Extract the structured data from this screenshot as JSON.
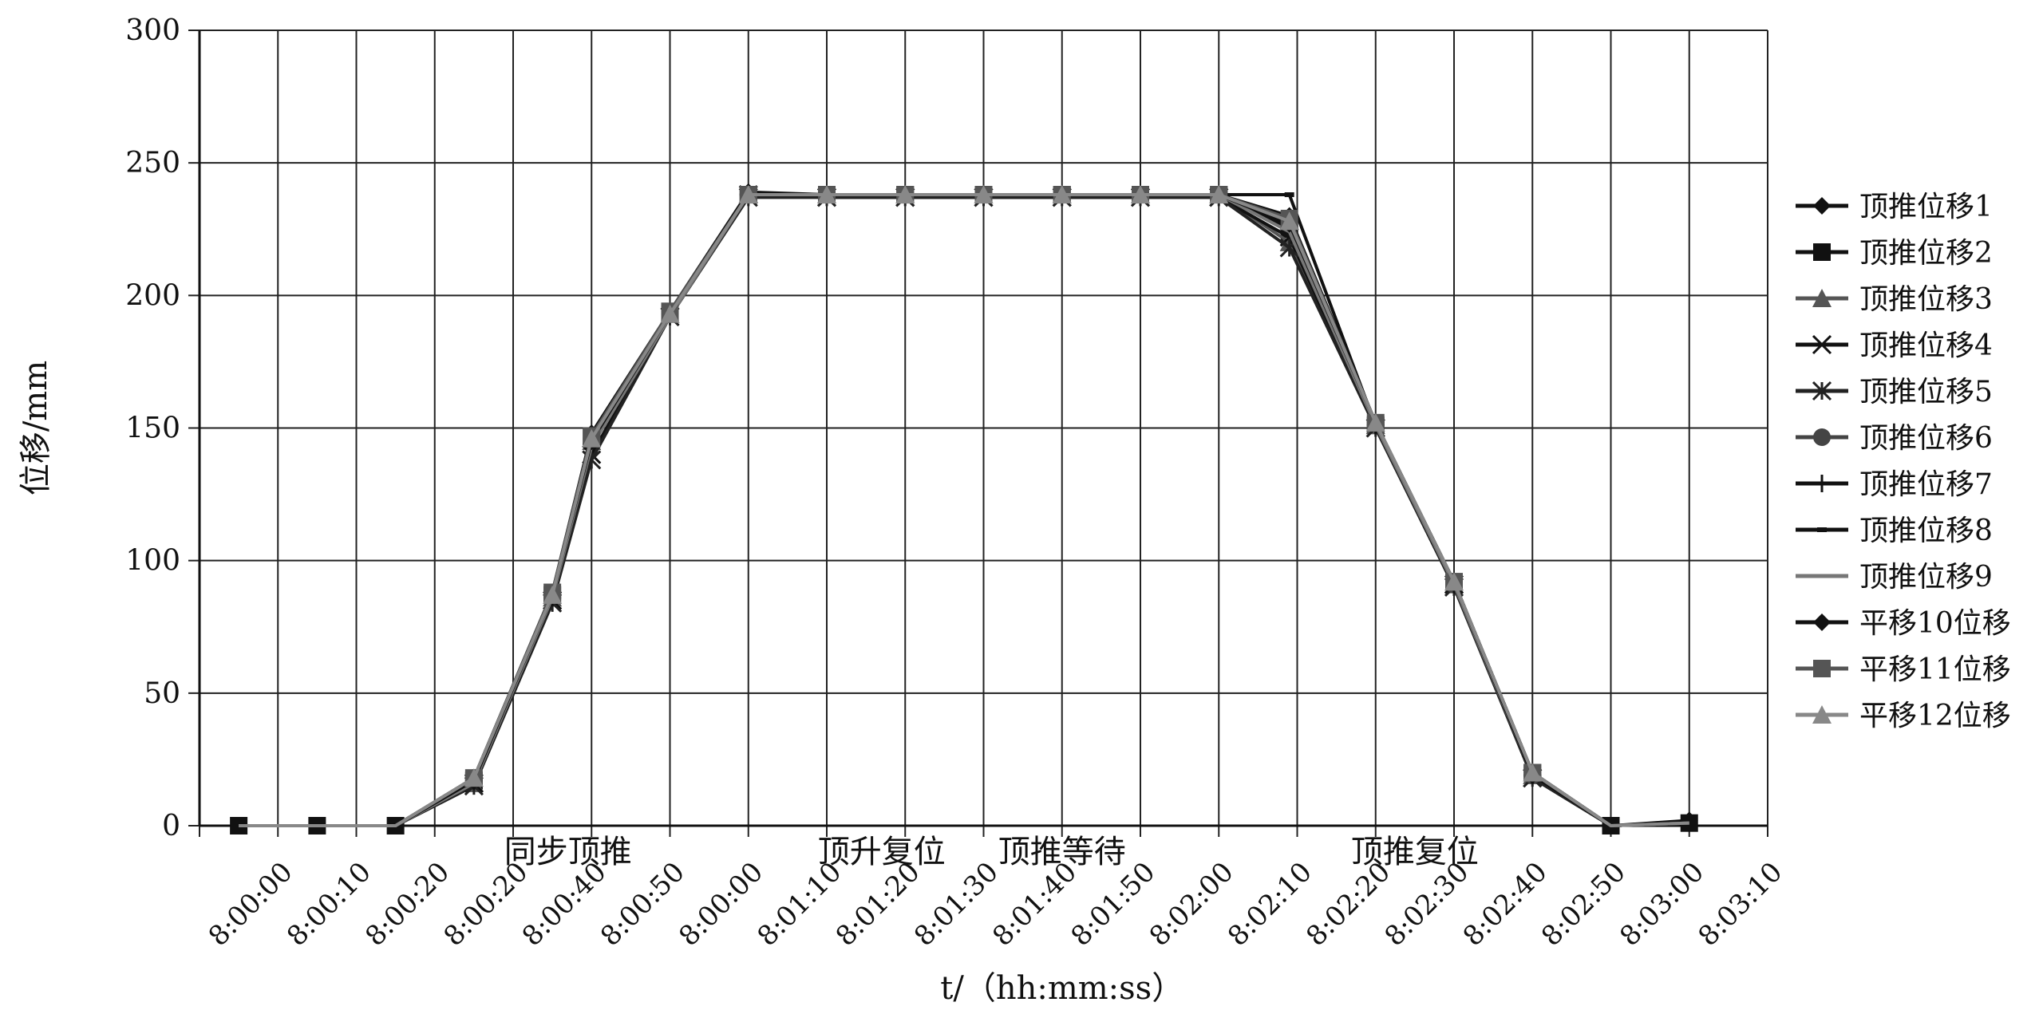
{
  "chart_data": {
    "type": "line",
    "title": "",
    "xlabel": "t/（hh:mm:ss）",
    "ylabel": "位移/mm",
    "ylim": [
      0,
      300
    ],
    "yticks": [
      0,
      50,
      100,
      150,
      200,
      250,
      300
    ],
    "grid": true,
    "legend_position": "right",
    "categories": [
      "8:00:00",
      "8:00:10",
      "8:00:20",
      "8:00:20",
      "8:00:40",
      "8:00:50",
      "8:00:00",
      "8:01:10",
      "8:01:20",
      "8:01:30",
      "8:01:40",
      "8:01:50",
      "8:02:00",
      "8:02:10",
      "8:02:20",
      "8:02:30",
      "8:02:40",
      "8:02:50",
      "8:03:00",
      "8:03:10"
    ],
    "x_positions": [
      0.5,
      1.5,
      2.5,
      3.5,
      4.5,
      5,
      6,
      7,
      8,
      9,
      10,
      11,
      12,
      13,
      13.9,
      15,
      16,
      17,
      18,
      19
    ],
    "annotations": [
      {
        "text": "同步顶推",
        "x": 4.7
      },
      {
        "text": "顶升复位",
        "x": 8.7
      },
      {
        "text": "顶推等待",
        "x": 11
      },
      {
        "text": "顶推复位",
        "x": 15.5
      }
    ],
    "series": [
      {
        "name": "顶推位移1",
        "marker": "diamond",
        "color": "#111111",
        "values": [
          0,
          0,
          0,
          18,
          88,
          148,
          194,
          239,
          238,
          238,
          238,
          238,
          238,
          238,
          230,
          152,
          92,
          20,
          0,
          2
        ]
      },
      {
        "name": "顶推位移2",
        "marker": "square",
        "color": "#111111",
        "values": [
          0,
          0,
          0,
          17,
          87,
          147,
          193,
          238,
          238,
          238,
          238,
          238,
          238,
          238,
          225,
          151,
          92,
          20,
          0,
          1
        ]
      },
      {
        "name": "顶推位移3",
        "marker": "triangle",
        "color": "#555555",
        "values": [
          0,
          0,
          0,
          16,
          86,
          145,
          193,
          238,
          238,
          238,
          238,
          238,
          238,
          238,
          220,
          151,
          91,
          19,
          0,
          1
        ]
      },
      {
        "name": "顶推位移4",
        "marker": "x",
        "color": "#111111",
        "values": [
          0,
          0,
          0,
          16,
          85,
          140,
          192,
          238,
          237,
          237,
          237,
          237,
          237,
          237,
          222,
          150,
          91,
          18,
          0,
          1
        ]
      },
      {
        "name": "顶推位移5",
        "marker": "asterisk",
        "color": "#222222",
        "values": [
          0,
          0,
          0,
          15,
          84,
          138,
          192,
          237,
          237,
          237,
          237,
          237,
          237,
          237,
          218,
          150,
          90,
          18,
          0,
          1
        ]
      },
      {
        "name": "顶推位移6",
        "marker": "circle",
        "color": "#444444",
        "values": [
          0,
          0,
          0,
          18,
          87,
          146,
          193,
          238,
          238,
          238,
          238,
          238,
          238,
          238,
          228,
          152,
          91,
          19,
          0,
          1
        ]
      },
      {
        "name": "顶推位移7",
        "marker": "plus",
        "color": "#111111",
        "values": [
          0,
          0,
          0,
          17,
          86,
          144,
          193,
          238,
          238,
          238,
          238,
          238,
          238,
          238,
          226,
          151,
          91,
          19,
          0,
          1
        ]
      },
      {
        "name": "顶推位移8",
        "marker": "dash",
        "color": "#111111",
        "values": [
          0,
          0,
          0,
          17,
          87,
          146,
          193,
          238,
          238,
          238,
          238,
          238,
          238,
          238,
          238,
          151,
          92,
          20,
          0,
          1
        ]
      },
      {
        "name": "顶推位移9",
        "marker": "line",
        "color": "#777777",
        "values": [
          0,
          0,
          0,
          16,
          86,
          143,
          192,
          238,
          238,
          238,
          238,
          238,
          238,
          238,
          224,
          151,
          91,
          19,
          0,
          1
        ]
      },
      {
        "name": "平移10位移",
        "marker": "diamond",
        "color": "#111111",
        "values": [
          0,
          0,
          0,
          17,
          87,
          145,
          193,
          238,
          238,
          238,
          238,
          238,
          238,
          238,
          227,
          152,
          92,
          19,
          0,
          1
        ]
      },
      {
        "name": "平移11位移",
        "marker": "square",
        "color": "#555555",
        "values": [
          0,
          0,
          0,
          18,
          88,
          147,
          194,
          238,
          238,
          238,
          238,
          238,
          238,
          238,
          229,
          152,
          92,
          20,
          0,
          1
        ]
      },
      {
        "name": "平移12位移",
        "marker": "triangle",
        "color": "#888888",
        "values": [
          0,
          0,
          0,
          18,
          87,
          146,
          193,
          238,
          238,
          238,
          238,
          238,
          238,
          238,
          228,
          152,
          92,
          20,
          0,
          1
        ]
      }
    ]
  }
}
